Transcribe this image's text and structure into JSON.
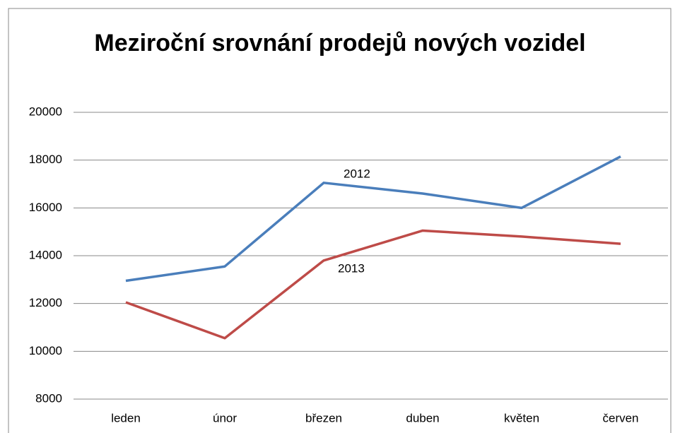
{
  "chart_data": {
    "type": "line",
    "title": "Meziroční srovnání prodejů nových vozidel",
    "categories": [
      "leden",
      "únor",
      "březen",
      "duben",
      "květen",
      "červen"
    ],
    "series": [
      {
        "name": "2012",
        "color": "#4a7ebb",
        "values": [
          12950,
          13550,
          17050,
          16600,
          16000,
          18150
        ]
      },
      {
        "name": "2013",
        "color": "#be4b48",
        "values": [
          12050,
          10550,
          13800,
          15050,
          14800,
          14500
        ]
      }
    ],
    "ylim": [
      8000,
      20000
    ],
    "yticks": [
      8000,
      10000,
      12000,
      14000,
      16000,
      18000,
      20000
    ],
    "grid": true
  }
}
